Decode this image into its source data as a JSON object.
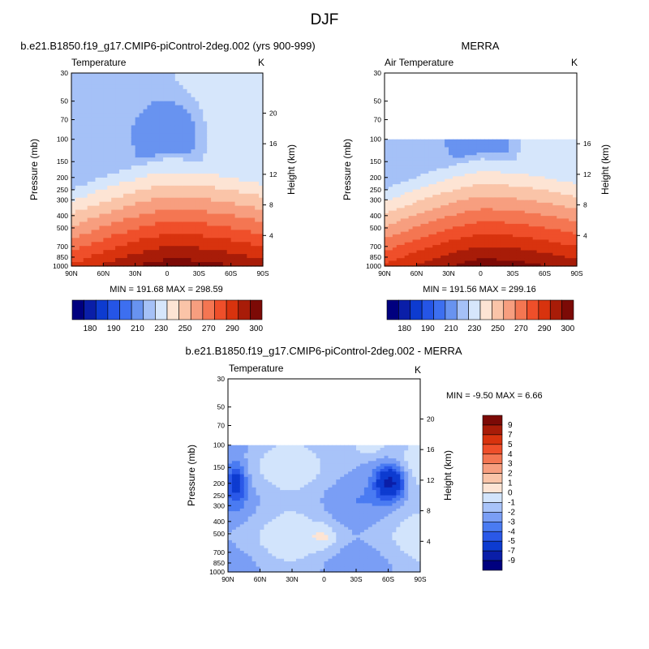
{
  "figure": {
    "title": "DJF"
  },
  "palette": {
    "temperature": [
      "#00007f",
      "#0a1ea8",
      "#0d3bd0",
      "#2555e6",
      "#3d6ff0",
      "#6893f0",
      "#a5c1f7",
      "#d6e6fb",
      "#fde4d4",
      "#fac4a8",
      "#f79e7f",
      "#f47652",
      "#ef4f2a",
      "#d8330e",
      "#a81c08",
      "#7c0a06"
    ],
    "difference": [
      "#00007f",
      "#0a1ea8",
      "#0d3bd0",
      "#2a58e8",
      "#4a7bf2",
      "#7a9ef5",
      "#a8c3f9",
      "#d2e4fc",
      "#fde4d4",
      "#fac4a8",
      "#f79e7f",
      "#f47652",
      "#ef4f2a",
      "#d8330e",
      "#a81c08",
      "#7c0a06"
    ]
  },
  "chart_data": [
    {
      "type": "heatmap",
      "title": "b.e21.B1850.f19_g17.CMIP6-piControl-2deg.002 (yrs 900-999)",
      "left_label": "Temperature",
      "units": "K",
      "xlabel": "",
      "ylabel": "Pressure (mb)",
      "ylabel_right": "Height (km)",
      "x_ticks": [
        "90N",
        "60N",
        "30N",
        "0",
        "30S",
        "60S",
        "90S"
      ],
      "y_ticks": [
        "30",
        "50",
        "70",
        "100",
        "150",
        "200",
        "250",
        "300",
        "400",
        "500",
        "700",
        "850",
        "1000"
      ],
      "height_ticks": [
        "20",
        "16",
        "12",
        "8",
        "4"
      ],
      "min_max_text": "MIN = 191.68   MAX = 298.59",
      "stats": {
        "min": 191.68,
        "max": 298.59
      },
      "data_top_mb": 30,
      "colorbar_labels": [
        "180",
        "190",
        "210",
        "230",
        "250",
        "270",
        "290",
        "300"
      ]
    },
    {
      "type": "heatmap",
      "title": "MERRA",
      "left_label": "Air Temperature",
      "units": "K",
      "xlabel": "",
      "ylabel": "Pressure (mb)",
      "ylabel_right": "Height (km)",
      "x_ticks": [
        "90N",
        "60N",
        "30N",
        "0",
        "30S",
        "60S",
        "90S"
      ],
      "y_ticks": [
        "30",
        "50",
        "70",
        "100",
        "150",
        "200",
        "250",
        "300",
        "400",
        "500",
        "700",
        "850",
        "1000"
      ],
      "height_ticks": [
        "16",
        "12",
        "8",
        "4"
      ],
      "min_max_text": "MIN = 191.56   MAX = 299.16",
      "stats": {
        "min": 191.56,
        "max": 299.16
      },
      "data_top_mb": 100,
      "colorbar_labels": [
        "180",
        "190",
        "210",
        "230",
        "250",
        "270",
        "290",
        "300"
      ]
    },
    {
      "type": "heatmap",
      "title": "b.e21.B1850.f19_g17.CMIP6-piControl-2deg.002 - MERRA",
      "left_label": "Temperature",
      "units": "K",
      "xlabel": "",
      "ylabel": "Pressure (mb)",
      "ylabel_right": "Height (km)",
      "x_ticks": [
        "90N",
        "60N",
        "30N",
        "0",
        "30S",
        "60S",
        "90S"
      ],
      "y_ticks": [
        "30",
        "50",
        "70",
        "100",
        "150",
        "200",
        "250",
        "300",
        "400",
        "500",
        "700",
        "850",
        "1000"
      ],
      "height_ticks": [
        "20",
        "16",
        "12",
        "8",
        "4"
      ],
      "min_max_text": "MIN =  -9.50   MAX =   6.66",
      "stats": {
        "min": -9.5,
        "max": 6.66
      },
      "data_top_mb": 100,
      "colorbar_labels": [
        "9",
        "7",
        "5",
        "4",
        "3",
        "2",
        "1",
        "0",
        "-1",
        "-2",
        "-3",
        "-4",
        "-5",
        "-7",
        "-9"
      ]
    }
  ]
}
